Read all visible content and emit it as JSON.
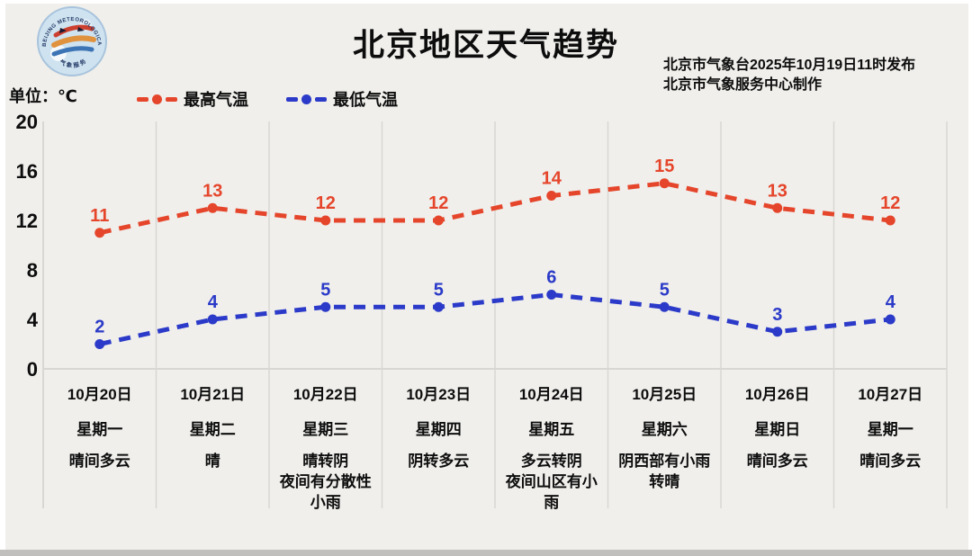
{
  "header": {
    "title": "北京地区天气趋势",
    "publisher_line1": "北京市气象台2025年10月19日11时发布",
    "publisher_line2": "北京市气象服务中心制作",
    "unit_label": "单位：℃",
    "logo_text_arc": "BEIJING METEOROLOGICAL SERVICE",
    "logo_text_bottom": "气象服务"
  },
  "legend": [
    {
      "label": "最高气温",
      "color": "#e5462b"
    },
    {
      "label": "最低气温",
      "color": "#2b3ac8"
    }
  ],
  "chart_data": {
    "type": "line",
    "title": "北京地区天气趋势",
    "ylabel": "单位：℃",
    "ylim": [
      0,
      20
    ],
    "yticks": [
      0,
      4,
      8,
      12,
      16,
      20
    ],
    "grid": "vertical-column-separators",
    "legend_position": "top-left",
    "line_style": "dashed",
    "categories": [
      "10月20日",
      "10月21日",
      "10月22日",
      "10月23日",
      "10月24日",
      "10月25日",
      "10月26日",
      "10月27日"
    ],
    "weekdays": [
      "星期一",
      "星期二",
      "星期三",
      "星期四",
      "星期五",
      "星期六",
      "星期日",
      "星期一"
    ],
    "weather": [
      "晴间多云",
      "晴",
      "晴转阴\n夜间有分散性\n小雨",
      "阴转多云",
      "多云转阴\n夜间山区有小\n雨",
      "阴西部有小雨\n转晴",
      "晴间多云",
      "晴间多云"
    ],
    "series": [
      {
        "name": "最高气温",
        "color": "#e5462b",
        "values": [
          11,
          13,
          12,
          12,
          14,
          15,
          13,
          12
        ]
      },
      {
        "name": "最低气温",
        "color": "#2b3ac8",
        "values": [
          2,
          4,
          5,
          5,
          6,
          5,
          3,
          4
        ]
      }
    ]
  },
  "colors": {
    "background": "#f0efec",
    "frame": "#ffffff",
    "grid": "#d8d7d3",
    "text": "#0d0d0d",
    "bottom_strip": "#c0bfbd"
  }
}
